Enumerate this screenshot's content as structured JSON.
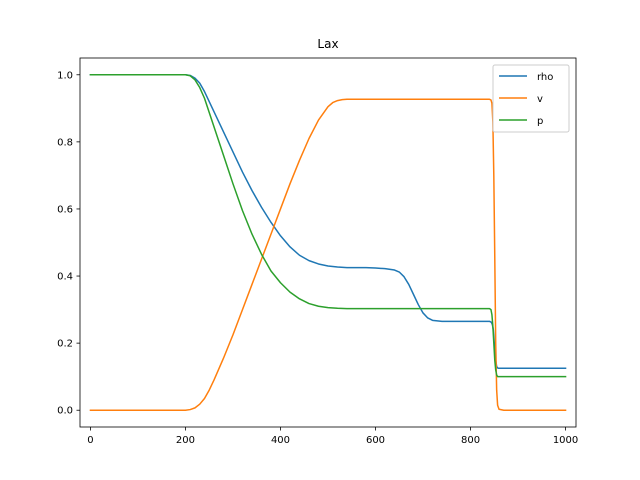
{
  "chart_data": {
    "type": "line",
    "title": "Lax",
    "xlabel": "",
    "ylabel": "",
    "xlim": [
      -22,
      1022
    ],
    "ylim": [
      -0.05,
      1.05
    ],
    "x_ticks": [
      0,
      200,
      400,
      600,
      800,
      1000
    ],
    "y_ticks": [
      0.0,
      0.2,
      0.4,
      0.6,
      0.8,
      1.0
    ],
    "x_tick_labels": [
      "0",
      "200",
      "400",
      "600",
      "800",
      "1000"
    ],
    "y_tick_labels": [
      "0.0",
      "0.2",
      "0.4",
      "0.6",
      "0.8",
      "1.0"
    ],
    "grid": false,
    "legend_position": "top-right",
    "series": [
      {
        "name": " rho",
        "color": "#1f77b4",
        "x": [
          0,
          200,
          210,
          220,
          230,
          240,
          260,
          280,
          300,
          320,
          340,
          360,
          380,
          400,
          420,
          440,
          460,
          480,
          500,
          520,
          540,
          560,
          580,
          600,
          620,
          640,
          650,
          660,
          670,
          680,
          690,
          700,
          710,
          720,
          740,
          760,
          780,
          800,
          820,
          840,
          844,
          846,
          848,
          850,
          852,
          855,
          858,
          860,
          900,
          1000
        ],
        "y": [
          1.0,
          1.0,
          0.998,
          0.99,
          0.975,
          0.95,
          0.89,
          0.83,
          0.77,
          0.71,
          0.655,
          0.605,
          0.56,
          0.52,
          0.487,
          0.462,
          0.446,
          0.436,
          0.43,
          0.427,
          0.425,
          0.425,
          0.425,
          0.424,
          0.422,
          0.418,
          0.412,
          0.398,
          0.375,
          0.345,
          0.315,
          0.29,
          0.275,
          0.268,
          0.265,
          0.265,
          0.265,
          0.265,
          0.265,
          0.265,
          0.262,
          0.255,
          0.24,
          0.2,
          0.16,
          0.13,
          0.125,
          0.125,
          0.125,
          0.125
        ]
      },
      {
        "name": "v",
        "color": "#ff7f0e",
        "x": [
          0,
          200,
          210,
          220,
          230,
          240,
          250,
          260,
          280,
          300,
          320,
          340,
          360,
          380,
          400,
          420,
          440,
          460,
          480,
          500,
          510,
          520,
          530,
          540,
          560,
          600,
          700,
          800,
          840,
          843,
          845,
          847,
          849,
          851,
          853,
          855,
          857,
          860,
          870,
          900,
          1000
        ],
        "y": [
          0.0,
          0.0,
          0.002,
          0.007,
          0.018,
          0.035,
          0.06,
          0.09,
          0.155,
          0.225,
          0.3,
          0.375,
          0.45,
          0.525,
          0.6,
          0.675,
          0.745,
          0.81,
          0.865,
          0.905,
          0.917,
          0.923,
          0.926,
          0.927,
          0.927,
          0.927,
          0.927,
          0.927,
          0.927,
          0.925,
          0.915,
          0.86,
          0.7,
          0.46,
          0.2,
          0.06,
          0.015,
          0.003,
          0.0,
          0.0,
          0.0
        ]
      },
      {
        "name": "p",
        "color": "#2ca02c",
        "x": [
          0,
          200,
          210,
          220,
          230,
          240,
          260,
          280,
          300,
          320,
          340,
          360,
          380,
          400,
          420,
          440,
          460,
          480,
          500,
          520,
          540,
          560,
          600,
          700,
          800,
          840,
          843,
          845,
          847,
          849,
          851,
          853,
          855,
          857,
          860,
          900,
          1000
        ],
        "y": [
          1.0,
          1.0,
          0.997,
          0.985,
          0.962,
          0.93,
          0.845,
          0.76,
          0.675,
          0.595,
          0.525,
          0.465,
          0.415,
          0.38,
          0.352,
          0.332,
          0.318,
          0.31,
          0.306,
          0.304,
          0.303,
          0.303,
          0.303,
          0.303,
          0.303,
          0.303,
          0.3,
          0.285,
          0.25,
          0.2,
          0.15,
          0.12,
          0.105,
          0.1,
          0.1,
          0.1,
          0.1
        ]
      }
    ]
  }
}
